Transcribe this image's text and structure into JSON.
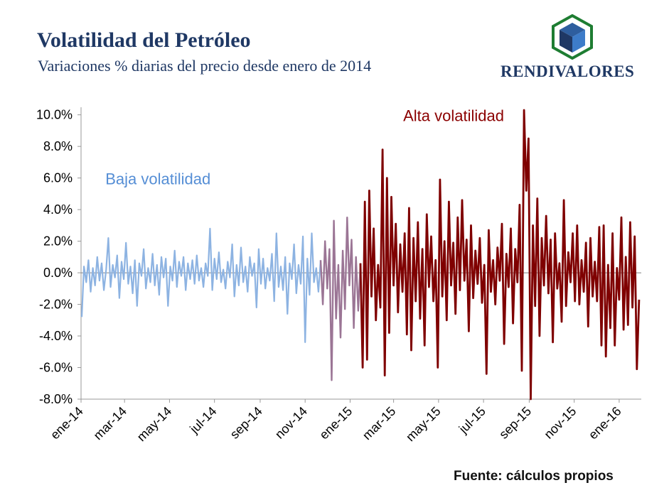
{
  "header": {
    "title": "Volatilidad del Petróleo",
    "subtitle": "Variaciones % diarias del precio desde enero de 2014",
    "brand": "RENDIVALORES"
  },
  "footer": {
    "source": "Fuente: cálculos propios"
  },
  "colors": {
    "low": "#8db3e2",
    "transition": "#9b7595",
    "high": "#7f0000",
    "axis": "#999999",
    "zero_line": "#808080",
    "logo_green": "#1e7d32",
    "logo_blue": "#2e5e9e",
    "logo_dark": "#1f3864"
  },
  "chart_data": {
    "type": "line",
    "ylim": [
      -8.0,
      10.3
    ],
    "yticks": [
      -8.0,
      -6.0,
      -4.0,
      -2.0,
      0.0,
      2.0,
      4.0,
      6.0,
      8.0,
      10.0
    ],
    "ytick_labels": [
      "-8.0%",
      "-6.0%",
      "-4.0%",
      "-2.0%",
      "0.0%",
      "2.0%",
      "4.0%",
      "6.0%",
      "8.0%",
      "10.0%"
    ],
    "xlim": [
      "2014-01-01",
      "2016-01-31"
    ],
    "x_tick_labels": [
      {
        "date": "2014-01-01",
        "label": "ene-14"
      },
      {
        "date": "2014-03-01",
        "label": "mar-14"
      },
      {
        "date": "2014-05-01",
        "label": "may-14"
      },
      {
        "date": "2014-07-01",
        "label": "jul-14"
      },
      {
        "date": "2014-09-01",
        "label": "sep-14"
      },
      {
        "date": "2014-11-01",
        "label": "nov-14"
      },
      {
        "date": "2015-01-01",
        "label": "ene-15"
      },
      {
        "date": "2015-03-01",
        "label": "mar-15"
      },
      {
        "date": "2015-05-01",
        "label": "may-15"
      },
      {
        "date": "2015-07-01",
        "label": "jul-15"
      },
      {
        "date": "2015-09-01",
        "label": "sep-15"
      },
      {
        "date": "2015-11-01",
        "label": "nov-15"
      },
      {
        "date": "2016-01-01",
        "label": "ene-16"
      }
    ],
    "annotations": [
      {
        "text": "Baja volatilidad",
        "date": "2014-02-03",
        "y": 5.6,
        "color": "#558ed5"
      },
      {
        "text": "Alta volatilidad",
        "date": "2015-03-14",
        "y": 9.6,
        "color": "#8b0000"
      }
    ],
    "series": [
      {
        "segment": "baja",
        "x": [
          "2014-01-02",
          "2014-01-05",
          "2014-01-08",
          "2014-01-11",
          "2014-01-14",
          "2014-01-17",
          "2014-01-20",
          "2014-01-23",
          "2014-01-26",
          "2014-01-29",
          "2014-02-01",
          "2014-02-04",
          "2014-02-07",
          "2014-02-10",
          "2014-02-13",
          "2014-02-16",
          "2014-02-19",
          "2014-02-22",
          "2014-02-25",
          "2014-02-28",
          "2014-03-03",
          "2014-03-06",
          "2014-03-09",
          "2014-03-12",
          "2014-03-15",
          "2014-03-18",
          "2014-03-21",
          "2014-03-24",
          "2014-03-27",
          "2014-03-30",
          "2014-04-02",
          "2014-04-05",
          "2014-04-08",
          "2014-04-11",
          "2014-04-14",
          "2014-04-17",
          "2014-04-20",
          "2014-04-23",
          "2014-04-26",
          "2014-04-29",
          "2014-05-02",
          "2014-05-05",
          "2014-05-08",
          "2014-05-11",
          "2014-05-14",
          "2014-05-17",
          "2014-05-20",
          "2014-05-23",
          "2014-05-26",
          "2014-05-29",
          "2014-06-01",
          "2014-06-04",
          "2014-06-07",
          "2014-06-10",
          "2014-06-13",
          "2014-06-16",
          "2014-06-19",
          "2014-06-22",
          "2014-06-25",
          "2014-06-28",
          "2014-07-01",
          "2014-07-04",
          "2014-07-07",
          "2014-07-10",
          "2014-07-13",
          "2014-07-16",
          "2014-07-19",
          "2014-07-22",
          "2014-07-25",
          "2014-07-28",
          "2014-07-31",
          "2014-08-03",
          "2014-08-06",
          "2014-08-09",
          "2014-08-12",
          "2014-08-15",
          "2014-08-18",
          "2014-08-21",
          "2014-08-24",
          "2014-08-27",
          "2014-08-30",
          "2014-09-02",
          "2014-09-05",
          "2014-09-08",
          "2014-09-11",
          "2014-09-14",
          "2014-09-17",
          "2014-09-20",
          "2014-09-23",
          "2014-09-26",
          "2014-09-29",
          "2014-10-02",
          "2014-10-05",
          "2014-10-08",
          "2014-10-11",
          "2014-10-14",
          "2014-10-17",
          "2014-10-20",
          "2014-10-23",
          "2014-10-26",
          "2014-10-29",
          "2014-11-01",
          "2014-11-04",
          "2014-11-07",
          "2014-11-10",
          "2014-11-13",
          "2014-11-16",
          "2014-11-19",
          "2014-11-22"
        ],
        "values": [
          -2.8,
          0.4,
          -0.6,
          0.8,
          -1.2,
          0.3,
          -0.8,
          1.0,
          -0.5,
          0.6,
          -1.1,
          0.2,
          2.2,
          -0.9,
          0.5,
          -0.3,
          1.1,
          -1.6,
          0.7,
          -0.4,
          1.9,
          -0.7,
          0.4,
          -1.3,
          0.8,
          -2.1,
          0.6,
          -0.2,
          1.5,
          -1.0,
          0.3,
          -0.6,
          1.2,
          -0.8,
          0.5,
          -1.4,
          1.0,
          -0.3,
          0.9,
          -2.1,
          0.4,
          -0.5,
          1.4,
          -0.9,
          0.7,
          -0.2,
          1.0,
          -1.1,
          0.6,
          -0.4,
          0.8,
          -0.7,
          1.1,
          -0.5,
          0.3,
          -0.9,
          0.6,
          -0.2,
          2.8,
          -1.1,
          0.9,
          -0.4,
          1.3,
          -0.6,
          0.2,
          -1.0,
          0.7,
          -0.3,
          1.8,
          -1.5,
          0.5,
          -0.8,
          1.6,
          -0.6,
          0.4,
          -1.2,
          1.0,
          -0.2,
          0.6,
          -2.2,
          1.5,
          -0.7,
          0.9,
          -1.0,
          0.3,
          -0.5,
          1.2,
          -1.8,
          2.5,
          -0.9,
          0.4,
          -1.1,
          1.0,
          -2.6,
          0.6,
          -0.4,
          1.8,
          -1.3,
          0.5,
          -0.7,
          2.3,
          -4.4,
          0.9,
          -1.4,
          2.5,
          -0.6,
          0.3,
          -1.2,
          0.8
        ]
      },
      {
        "segment": "transicion",
        "x": [
          "2014-11-22",
          "2014-11-25",
          "2014-11-28",
          "2014-12-01",
          "2014-12-04",
          "2014-12-07",
          "2014-12-10",
          "2014-12-13",
          "2014-12-16",
          "2014-12-19",
          "2014-12-22",
          "2014-12-25",
          "2014-12-28",
          "2014-12-31",
          "2015-01-03",
          "2015-01-06",
          "2015-01-09",
          "2015-01-12",
          "2015-01-15"
        ],
        "values": [
          0.8,
          -2.0,
          2.0,
          -1.0,
          1.5,
          -6.8,
          3.3,
          -2.9,
          0.5,
          -4.1,
          1.4,
          -2.3,
          3.5,
          -0.8,
          2.1,
          -3.5,
          1.0,
          -2.4,
          0.6
        ]
      },
      {
        "segment": "alta",
        "x": [
          "2015-01-15",
          "2015-01-18",
          "2015-01-21",
          "2015-01-24",
          "2015-01-27",
          "2015-01-30",
          "2015-02-02",
          "2015-02-05",
          "2015-02-08",
          "2015-02-11",
          "2015-02-14",
          "2015-02-17",
          "2015-02-20",
          "2015-02-23",
          "2015-02-26",
          "2015-03-01",
          "2015-03-04",
          "2015-03-07",
          "2015-03-10",
          "2015-03-13",
          "2015-03-16",
          "2015-03-19",
          "2015-03-22",
          "2015-03-25",
          "2015-03-28",
          "2015-03-31",
          "2015-04-03",
          "2015-04-06",
          "2015-04-09",
          "2015-04-12",
          "2015-04-15",
          "2015-04-18",
          "2015-04-21",
          "2015-04-24",
          "2015-04-27",
          "2015-04-30",
          "2015-05-03",
          "2015-05-06",
          "2015-05-09",
          "2015-05-12",
          "2015-05-15",
          "2015-05-18",
          "2015-05-21",
          "2015-05-24",
          "2015-05-27",
          "2015-05-30",
          "2015-06-02",
          "2015-06-05",
          "2015-06-08",
          "2015-06-11",
          "2015-06-14",
          "2015-06-17",
          "2015-06-20",
          "2015-06-23",
          "2015-06-26",
          "2015-06-29",
          "2015-07-02",
          "2015-07-05",
          "2015-07-08",
          "2015-07-11",
          "2015-07-14",
          "2015-07-17",
          "2015-07-20",
          "2015-07-23",
          "2015-07-26",
          "2015-07-29",
          "2015-08-01",
          "2015-08-04",
          "2015-08-07",
          "2015-08-10",
          "2015-08-13",
          "2015-08-16",
          "2015-08-19",
          "2015-08-22",
          "2015-08-25",
          "2015-08-28",
          "2015-08-31",
          "2015-09-03",
          "2015-09-06",
          "2015-09-09",
          "2015-09-12",
          "2015-09-15",
          "2015-09-18",
          "2015-09-21",
          "2015-09-24",
          "2015-09-27",
          "2015-09-30",
          "2015-10-03",
          "2015-10-06",
          "2015-10-09",
          "2015-10-12",
          "2015-10-15",
          "2015-10-18",
          "2015-10-21",
          "2015-10-24",
          "2015-10-27",
          "2015-10-30",
          "2015-11-02",
          "2015-11-05",
          "2015-11-08",
          "2015-11-11",
          "2015-11-14",
          "2015-11-17",
          "2015-11-20",
          "2015-11-23",
          "2015-11-26",
          "2015-11-29",
          "2015-12-02",
          "2015-12-05",
          "2015-12-08",
          "2015-12-11",
          "2015-12-14",
          "2015-12-17",
          "2015-12-20",
          "2015-12-23",
          "2015-12-26",
          "2015-12-29",
          "2016-01-01",
          "2016-01-04",
          "2016-01-07",
          "2016-01-10",
          "2016-01-13",
          "2016-01-16",
          "2016-01-19",
          "2016-01-22",
          "2016-01-25",
          "2016-01-28"
        ],
        "values": [
          0.6,
          -6.0,
          4.5,
          -5.5,
          5.2,
          -1.5,
          2.8,
          -3.0,
          0.5,
          -2.2,
          7.8,
          -6.5,
          6.0,
          -3.8,
          4.8,
          -0.8,
          3.1,
          -2.5,
          1.8,
          -1.2,
          2.5,
          -3.9,
          4.1,
          -4.9,
          2.2,
          -1.8,
          3.2,
          -2.9,
          1.5,
          -4.6,
          3.7,
          -0.9,
          2.3,
          -1.8,
          0.8,
          -6.0,
          5.9,
          -1.5,
          2.0,
          -3.0,
          4.5,
          -0.8,
          1.9,
          -2.6,
          3.5,
          -1.1,
          4.6,
          -0.5,
          2.1,
          -3.7,
          3.0,
          -1.6,
          1.4,
          -0.7,
          2.2,
          -1.9,
          0.5,
          -6.4,
          2.7,
          -1.2,
          0.8,
          -2.0,
          1.6,
          -0.5,
          3.1,
          -4.5,
          1.2,
          -0.9,
          2.8,
          -3.2,
          1.5,
          -0.6,
          4.3,
          -6.2,
          10.3,
          5.2,
          8.5,
          -8.0,
          3.0,
          -2.1,
          4.7,
          -4.0,
          2.2,
          -0.8,
          3.6,
          -1.3,
          2.1,
          -4.4,
          2.5,
          -1.0,
          0.6,
          -3.1,
          4.6,
          -2.1,
          1.3,
          -0.6,
          2.5,
          -1.8,
          3.0,
          -2.0,
          0.8,
          -1.2,
          1.9,
          -3.4,
          2.2,
          -1.5,
          0.7,
          -1.8,
          2.9,
          -4.6,
          3.0,
          -5.3,
          0.5,
          -3.5,
          2.5,
          -4.6,
          0.3,
          -1.7,
          3.5,
          -3.6,
          1.0,
          -3.3,
          3.2,
          -2.2,
          2.3,
          -6.1,
          -1.7
        ]
      }
    ]
  }
}
